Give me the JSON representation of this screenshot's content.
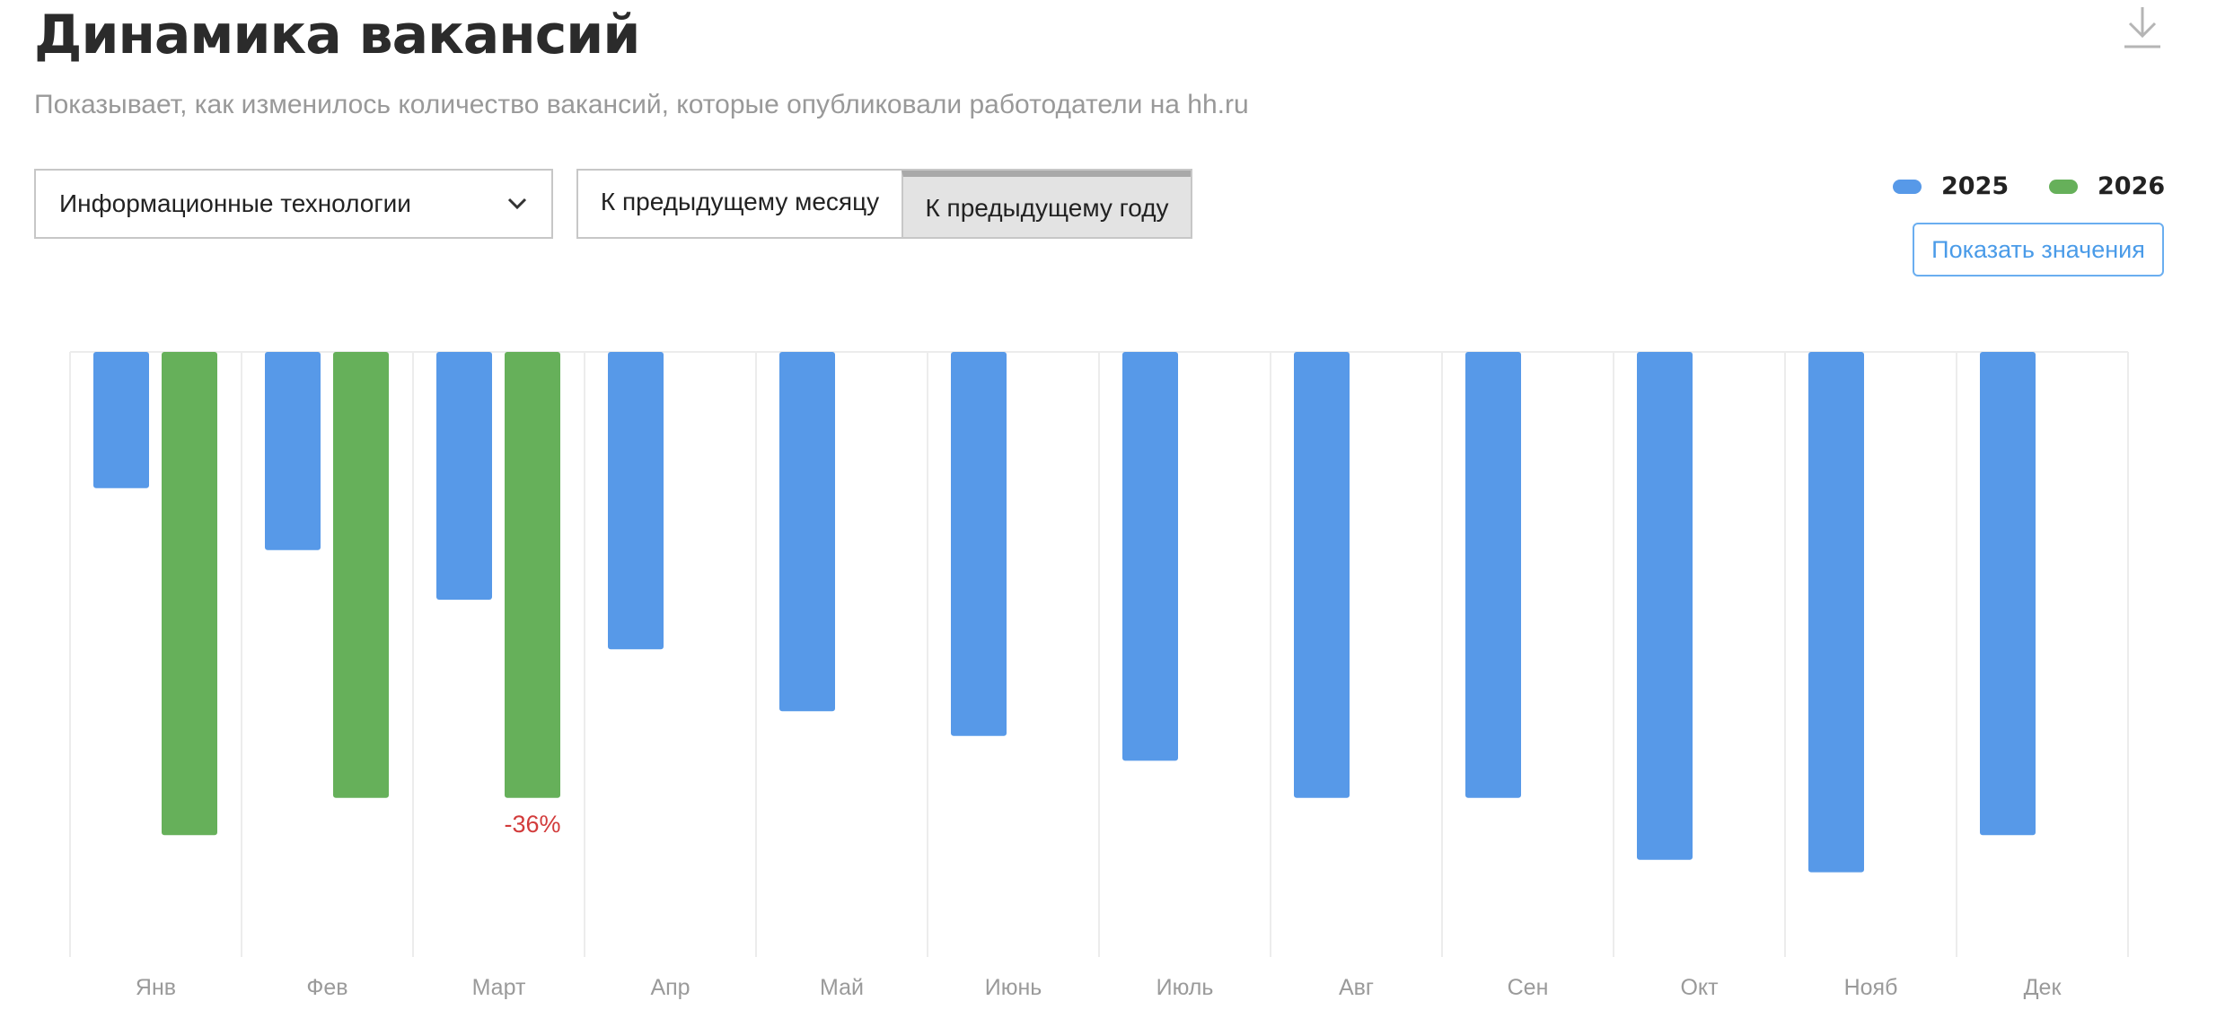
{
  "header": {
    "title": "Динамика вакансий",
    "subtitle": "Показывает, как изменилось количество вакансий, которые опубликовали работодатели на hh.ru",
    "download_icon": "download-icon"
  },
  "filters": {
    "industry_selected": "Информационные технологии",
    "compare_options": [
      "К предыдущему месяцу",
      "К предыдущему году"
    ],
    "compare_selected": "К предыдущему году"
  },
  "legend": [
    {
      "label": "2025",
      "color": "#5799e8"
    },
    {
      "label": "2026",
      "color": "#66b05a"
    }
  ],
  "show_values_label": "Показать значения",
  "chart_data": {
    "type": "bar",
    "orientation": "downward",
    "categories": [
      "Янв",
      "Фев",
      "Март",
      "Апр",
      "Май",
      "Июнь",
      "Июль",
      "Авг",
      "Сен",
      "Окт",
      "Нояб",
      "Дек"
    ],
    "series": [
      {
        "name": "2025",
        "color": "#5799e8",
        "values": [
          0.22,
          0.32,
          0.4,
          0.48,
          0.58,
          0.62,
          0.66,
          0.72,
          0.72,
          0.82,
          0.84,
          0.78
        ]
      },
      {
        "name": "2026",
        "color": "#66b05a",
        "values": [
          0.78,
          0.72,
          0.72,
          null,
          null,
          null,
          null,
          null,
          null,
          null,
          null,
          null
        ]
      }
    ],
    "ylim": [
      0,
      1
    ],
    "annotations": [
      {
        "category": "Март",
        "series": "2026",
        "text": "-36%",
        "color": "#d23b3b"
      }
    ],
    "grid": "vertical",
    "legend_position": "top-right"
  }
}
